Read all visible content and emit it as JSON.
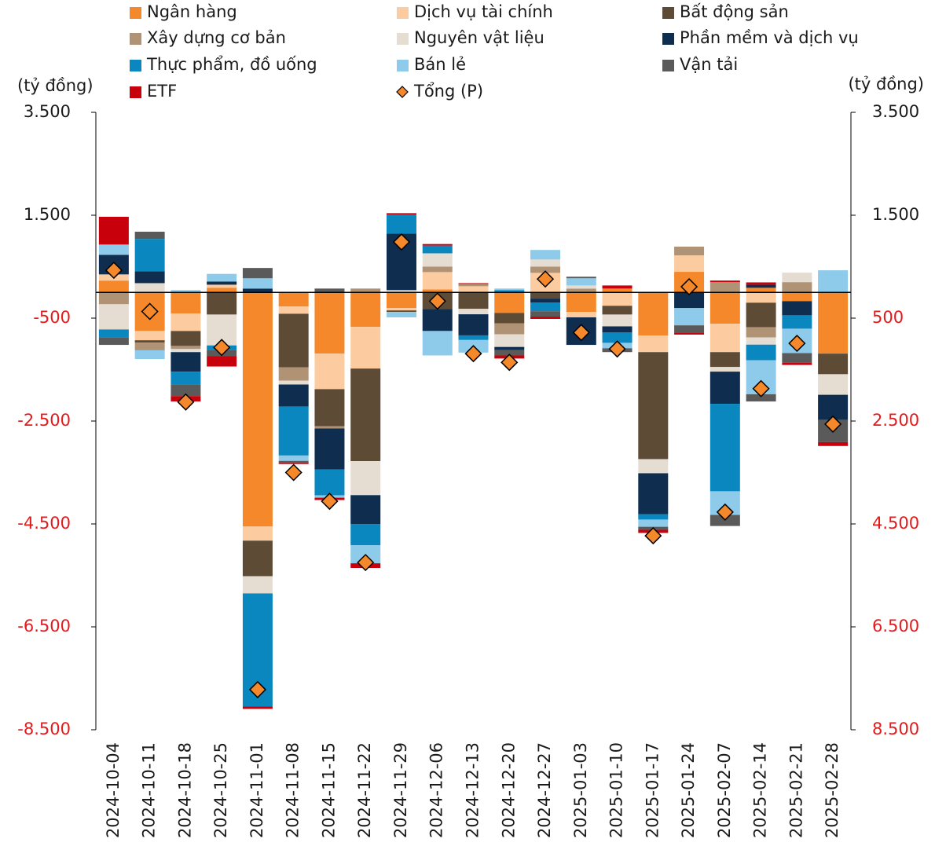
{
  "chart_data": {
    "type": "stacked_bar",
    "ylabel": "(tỷ đồng)",
    "y2label": "(tỷ đồng)",
    "categories": [
      "2024-10-04",
      "2024-10-11",
      "2024-10-18",
      "2024-10-25",
      "2024-11-01",
      "2024-11-08",
      "2024-11-15",
      "2024-11-22",
      "2024-11-29",
      "2024-12-06",
      "2024-12-13",
      "2024-12-20",
      "2024-12-27",
      "2025-01-03",
      "2025-01-10",
      "2025-01-17",
      "2025-01-24",
      "2025-02-07",
      "2025-02-14",
      "2025-02-21",
      "2025-02-28"
    ],
    "series": [
      {
        "name": "Ngân hàng",
        "color": "#f4882a",
        "values": [
          230,
          -750,
          -410,
          90,
          -4550,
          -275,
          -1190,
          -670,
          -305,
          60,
          0,
          -400,
          0,
          -380,
          75,
          -840,
          400,
          -610,
          90,
          -170,
          -1190
        ]
      },
      {
        "name": "Dịch vụ tài chính",
        "color": "#fccca0",
        "values": [
          120,
          -180,
          -340,
          60,
          -275,
          -140,
          -690,
          -810,
          -45,
          335,
          120,
          0,
          380,
          -105,
          -260,
          -320,
          320,
          -550,
          -200,
          0,
          0
        ]
      },
      {
        "name": "Bất động sản",
        "color": "#5e4b36",
        "values": [
          0,
          -45,
          -290,
          -430,
          -690,
          -1040,
          -720,
          -1800,
          -30,
          -320,
          -320,
          -200,
          -120,
          0,
          -170,
          -2080,
          0,
          -290,
          -475,
          0,
          -400
        ]
      },
      {
        "name": "Xây dựng cơ bản",
        "color": "#b09274",
        "values": [
          -230,
          -150,
          -60,
          0,
          0,
          -260,
          -45,
          75,
          0,
          105,
          45,
          -215,
          120,
          75,
          0,
          0,
          170,
          200,
          -200,
          200,
          0
        ]
      },
      {
        "name": "Nguyên vật liệu",
        "color": "#e6ddd2",
        "values": [
          -490,
          180,
          -60,
          -600,
          -335,
          -75,
          0,
          -660,
          45,
          260,
          -105,
          -245,
          140,
          60,
          -230,
          -275,
          0,
          -90,
          -140,
          185,
          -400
        ]
      },
      {
        "name": "Phần mềm và dịch vụ",
        "color": "#0f2d4f",
        "values": [
          380,
          230,
          -380,
          60,
          75,
          -430,
          -795,
          -565,
          1100,
          -430,
          -410,
          -60,
          -75,
          -535,
          -120,
          -795,
          -305,
          -625,
          60,
          -275,
          -490
        ]
      },
      {
        "name": "Thực phẩm, đồ uống",
        "color": "#0a87be",
        "values": [
          -150,
          630,
          -245,
          -90,
          -2200,
          -950,
          -505,
          -410,
          365,
          150,
          -90,
          45,
          -170,
          0,
          -200,
          -105,
          0,
          -1700,
          -305,
          -260,
          0
        ]
      },
      {
        "name": "Bán lẻ",
        "color": "#8ecae9",
        "values": [
          200,
          -170,
          45,
          150,
          200,
          -105,
          -45,
          -350,
          -105,
          -475,
          -245,
          30,
          185,
          140,
          -105,
          -140,
          -335,
          -460,
          -660,
          -475,
          430
        ]
      },
      {
        "name": "Vận tải",
        "color": "#5a5a5a",
        "values": [
          -150,
          140,
          -230,
          -120,
          200,
          -30,
          75,
          0,
          0,
          0,
          0,
          -105,
          -105,
          30,
          -75,
          -60,
          -150,
          -215,
          -140,
          -185,
          -430
        ]
      },
      {
        "name": "ETF",
        "color": "#c8000b",
        "values": [
          540,
          0,
          -105,
          -200,
          -45,
          -30,
          -45,
          -90,
          30,
          30,
          15,
          -60,
          -45,
          0,
          60,
          -60,
          -30,
          30,
          45,
          -45,
          -75
        ]
      }
    ],
    "total": {
      "name": "Tổng (P)",
      "color": "#f4882a",
      "marker": "diamond",
      "values": [
        430,
        -370,
        -2130,
        -1070,
        -7720,
        -3500,
        -4060,
        -5250,
        980,
        -170,
        -1190,
        -1360,
        260,
        -780,
        -1100,
        -4730,
        110,
        -4270,
        -1870,
        -990,
        -2560
      ]
    },
    "ylim": [
      -8500,
      3500
    ],
    "yticks": [
      {
        "value": 3500,
        "label": "3.500"
      },
      {
        "value": 1500,
        "label": "1.500"
      },
      {
        "value": -500,
        "label": "-500"
      },
      {
        "value": -2500,
        "label": "-2.500"
      },
      {
        "value": -4500,
        "label": "-4.500"
      },
      {
        "value": -6500,
        "label": "-6.500"
      },
      {
        "value": -8500,
        "label": "-8.500"
      }
    ],
    "y2lim": [
      -8500,
      3500
    ],
    "y2ticks": [
      {
        "value": 3500,
        "label": "3.500"
      },
      {
        "value": 1500,
        "label": "1.500"
      },
      {
        "value": -500,
        "label": "500"
      },
      {
        "value": -2500,
        "label": "2.500"
      },
      {
        "value": -4500,
        "label": "4.500"
      },
      {
        "value": -6500,
        "label": "6.500"
      },
      {
        "value": -8500,
        "label": "8.500"
      }
    ],
    "negative_tick_color": "#e41a1c",
    "grid": false
  }
}
